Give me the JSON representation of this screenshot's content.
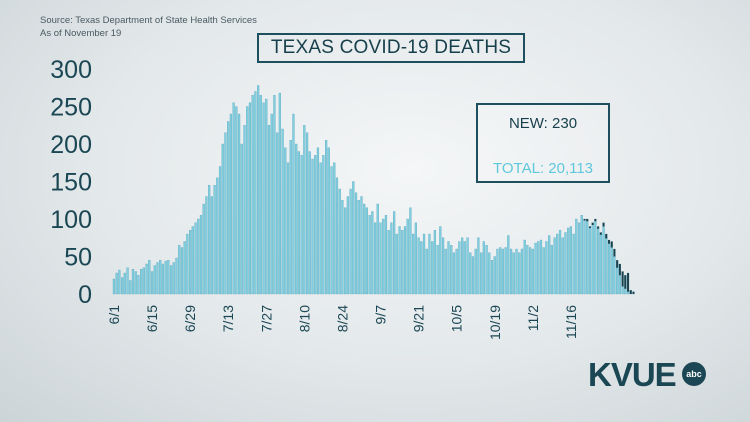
{
  "source": {
    "line1": "Source: Texas Department of State Health Services",
    "line2": "As of November 19"
  },
  "title": "TEXAS COVID-19 DEATHS",
  "info_box": {
    "new": "NEW: 230",
    "total": "TOTAL: 20,113"
  },
  "logo": {
    "text": "KVUE",
    "badge": "abc"
  },
  "colors": {
    "bar": "#80cfe0",
    "bar_edge": "#4f9fb5",
    "recent_tip": "#1b3f4b",
    "axis_text": "#1b4755"
  },
  "chart_data": {
    "type": "bar",
    "title": "TEXAS COVID-19 DEATHS",
    "xlabel": "",
    "ylabel": "",
    "ylim": [
      0,
      300
    ],
    "yticks": [
      0,
      50,
      100,
      150,
      200,
      250,
      300
    ],
    "xtick_labels": [
      "6/1",
      "6/15",
      "6/29",
      "7/13",
      "7/27",
      "8/10",
      "8/24",
      "9/7",
      "9/21",
      "10/5",
      "10/19",
      "11/2",
      "11/16"
    ],
    "start_date": "6/1",
    "grid": false,
    "legend": "none",
    "values": [
      20,
      28,
      32,
      22,
      28,
      35,
      18,
      33,
      30,
      25,
      33,
      35,
      40,
      45,
      30,
      38,
      42,
      45,
      40,
      44,
      45,
      38,
      42,
      48,
      65,
      62,
      70,
      80,
      85,
      90,
      95,
      100,
      105,
      120,
      130,
      145,
      130,
      145,
      155,
      170,
      200,
      215,
      230,
      240,
      255,
      250,
      240,
      200,
      225,
      250,
      255,
      265,
      270,
      278,
      265,
      255,
      260,
      225,
      240,
      265,
      215,
      268,
      220,
      195,
      175,
      205,
      240,
      200,
      190,
      185,
      225,
      215,
      190,
      180,
      185,
      195,
      175,
      185,
      205,
      195,
      170,
      175,
      155,
      140,
      125,
      115,
      130,
      140,
      150,
      135,
      125,
      130,
      120,
      115,
      105,
      110,
      95,
      120,
      95,
      100,
      105,
      85,
      95,
      110,
      80,
      90,
      85,
      90,
      100,
      115,
      80,
      95,
      75,
      70,
      80,
      60,
      80,
      70,
      85,
      65,
      90,
      75,
      60,
      70,
      65,
      55,
      60,
      70,
      75,
      70,
      75,
      55,
      50,
      60,
      75,
      55,
      70,
      65,
      55,
      45,
      50,
      60,
      62,
      60,
      62,
      78,
      60,
      55,
      60,
      55,
      60,
      72,
      65,
      62,
      60,
      68,
      70,
      72,
      62,
      70,
      78,
      65,
      75,
      80,
      85,
      75,
      82,
      88,
      90,
      80,
      100,
      95,
      105,
      100,
      100,
      90,
      95,
      100,
      90,
      82,
      95,
      80,
      72,
      70,
      60,
      45,
      40,
      30,
      25,
      28,
      5,
      3
    ],
    "recent_tip_heights": [
      0,
      0,
      0,
      0,
      0,
      0,
      0,
      0,
      0,
      0,
      0,
      0,
      0,
      0,
      0,
      0,
      0,
      0,
      0,
      0,
      0,
      0,
      0,
      0,
      0,
      0,
      0,
      0,
      0,
      0,
      0,
      0,
      0,
      0,
      0,
      0,
      0,
      0,
      0,
      0,
      0,
      0,
      0,
      0,
      0,
      0,
      0,
      0,
      0,
      0,
      0,
      0,
      0,
      0,
      0,
      0,
      0,
      0,
      0,
      0,
      0,
      0,
      0,
      0,
      0,
      0,
      0,
      0,
      0,
      0,
      0,
      0,
      0,
      0,
      0,
      0,
      0,
      0,
      0,
      0,
      0,
      0,
      0,
      0,
      0,
      0,
      0,
      0,
      0,
      0,
      0,
      0,
      0,
      0,
      0,
      0,
      0,
      0,
      0,
      0,
      0,
      0,
      0,
      0,
      0,
      0,
      0,
      0,
      0,
      0,
      0,
      0,
      0,
      0,
      0,
      0,
      0,
      0,
      0,
      0,
      0,
      0,
      0,
      0,
      0,
      0,
      0,
      0,
      0,
      0,
      0,
      0,
      0,
      0,
      0,
      0,
      0,
      0,
      0,
      0,
      0,
      0,
      0,
      0,
      0,
      0,
      0,
      0,
      0,
      0,
      0,
      0,
      0,
      0,
      0,
      0,
      0,
      0,
      0,
      0,
      0,
      0,
      0,
      0,
      0,
      0,
      0,
      0,
      0,
      0,
      0,
      0,
      0,
      2,
      3,
      2,
      3,
      3,
      3,
      3,
      5,
      6,
      5,
      8,
      10,
      10,
      15,
      20,
      18,
      25,
      5,
      3
    ]
  }
}
